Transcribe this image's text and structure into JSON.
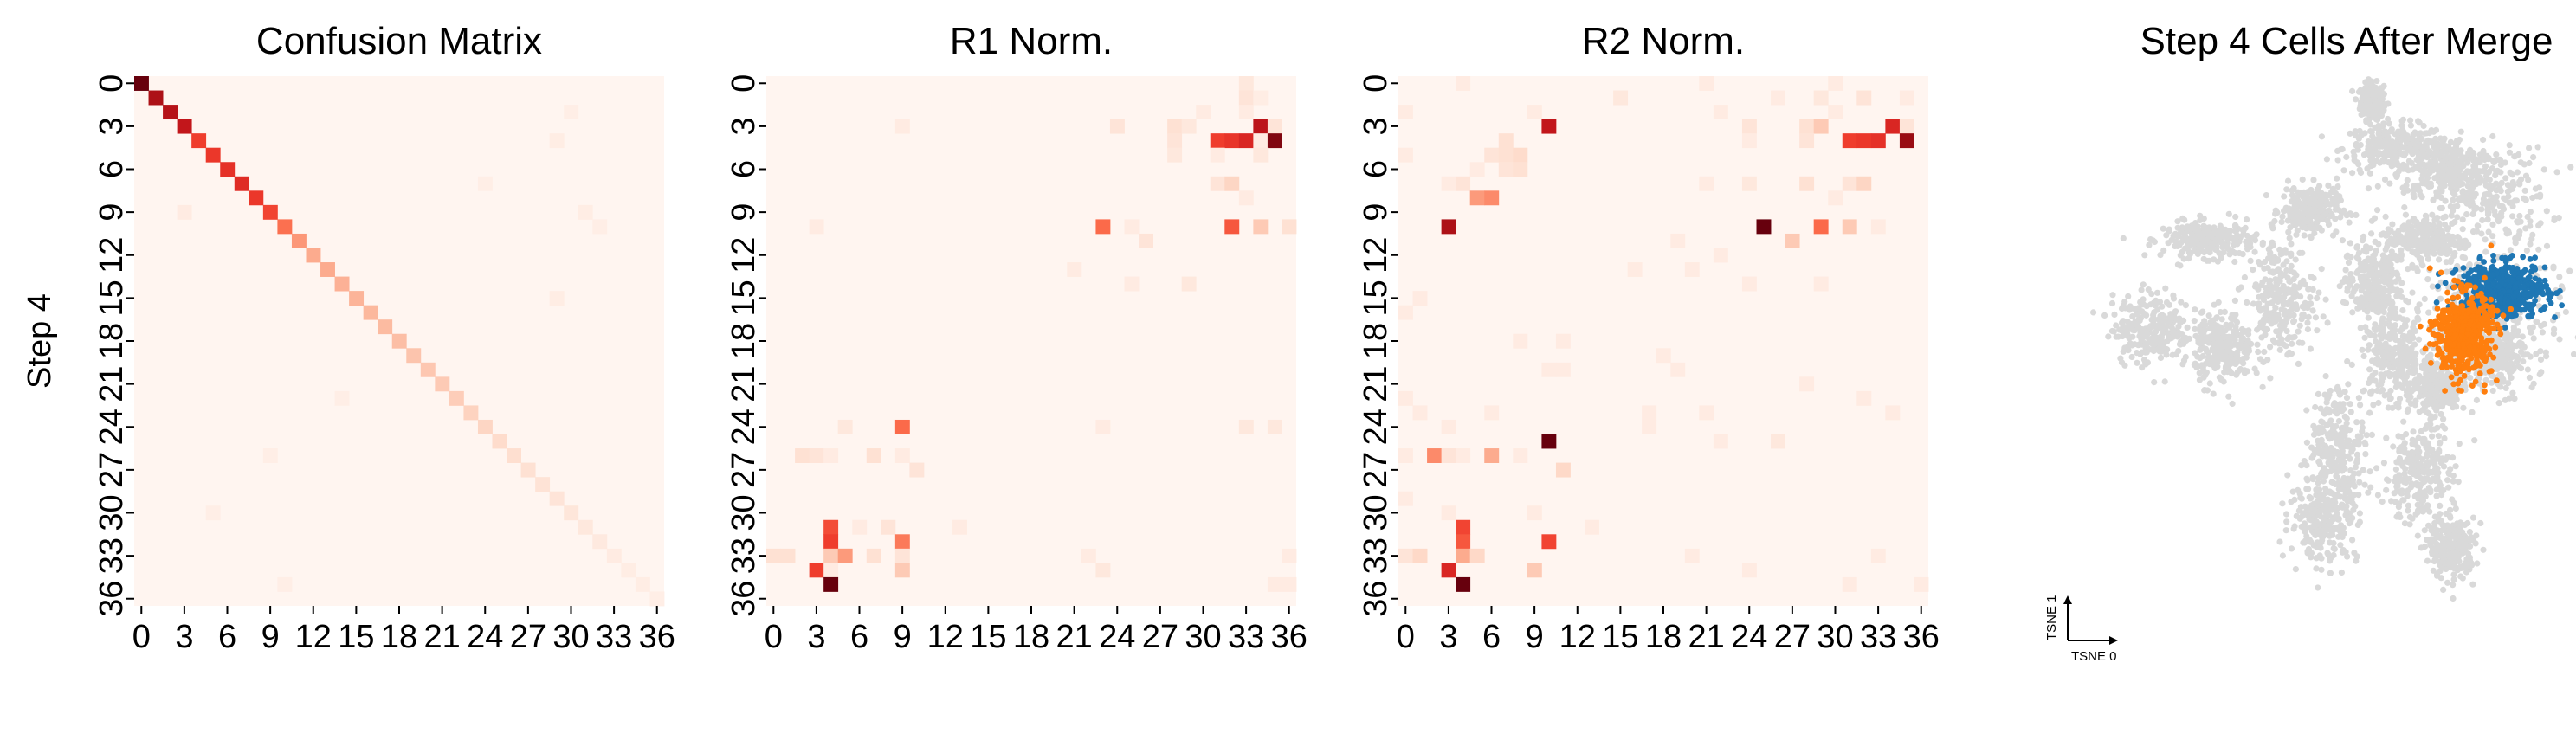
{
  "chart_data": [
    {
      "type": "heatmap",
      "title": "Confusion Matrix",
      "ylabel": "Step 4",
      "xlabel": "",
      "size": 37,
      "tick_labels": [
        "0",
        "3",
        "6",
        "9",
        "12",
        "15",
        "18",
        "21",
        "24",
        "27",
        "30",
        "33",
        "36"
      ],
      "tick_values": [
        0,
        3,
        6,
        9,
        12,
        15,
        18,
        21,
        24,
        27,
        30,
        33,
        36
      ],
      "colormap": "Reds",
      "cells": [
        [
          0,
          0,
          1.0
        ],
        [
          1,
          1,
          0.85
        ],
        [
          2,
          2,
          0.82
        ],
        [
          3,
          3,
          0.78
        ],
        [
          4,
          4,
          0.62
        ],
        [
          5,
          5,
          0.64
        ],
        [
          6,
          6,
          0.66
        ],
        [
          7,
          7,
          0.68
        ],
        [
          8,
          8,
          0.64
        ],
        [
          9,
          9,
          0.6
        ],
        [
          10,
          10,
          0.48
        ],
        [
          11,
          11,
          0.36
        ],
        [
          12,
          12,
          0.3
        ],
        [
          13,
          13,
          0.3
        ],
        [
          14,
          14,
          0.28
        ],
        [
          15,
          15,
          0.27
        ],
        [
          16,
          16,
          0.26
        ],
        [
          17,
          17,
          0.25
        ],
        [
          18,
          18,
          0.24
        ],
        [
          19,
          19,
          0.22
        ],
        [
          20,
          20,
          0.21
        ],
        [
          21,
          21,
          0.2
        ],
        [
          22,
          22,
          0.19
        ],
        [
          23,
          23,
          0.17
        ],
        [
          24,
          24,
          0.16
        ],
        [
          25,
          25,
          0.14
        ],
        [
          26,
          26,
          0.13
        ],
        [
          27,
          27,
          0.12
        ],
        [
          28,
          28,
          0.11
        ],
        [
          29,
          29,
          0.1
        ],
        [
          30,
          30,
          0.09
        ],
        [
          31,
          31,
          0.08
        ],
        [
          32,
          32,
          0.07
        ],
        [
          33,
          33,
          0.06
        ],
        [
          34,
          34,
          0.05
        ],
        [
          35,
          35,
          0.05
        ],
        [
          36,
          36,
          0.04
        ],
        [
          3,
          9,
          0.06
        ],
        [
          29,
          4,
          0.05
        ],
        [
          29,
          15,
          0.05
        ],
        [
          31,
          9,
          0.05
        ],
        [
          32,
          10,
          0.04
        ],
        [
          30,
          2,
          0.04
        ],
        [
          9,
          26,
          0.04
        ],
        [
          24,
          7,
          0.04
        ],
        [
          5,
          30,
          0.04
        ],
        [
          14,
          22,
          0.04
        ],
        [
          10,
          35,
          0.04
        ]
      ]
    },
    {
      "type": "heatmap",
      "title": "R1 Norm.",
      "xlabel": "",
      "ylabel": "",
      "size": 37,
      "tick_labels": [
        "0",
        "3",
        "6",
        "9",
        "12",
        "15",
        "18",
        "21",
        "24",
        "27",
        "30",
        "33",
        "36"
      ],
      "tick_values": [
        0,
        3,
        6,
        9,
        12,
        15,
        18,
        21,
        24,
        27,
        30,
        33,
        36
      ],
      "colormap": "Reds",
      "cells": [
        [
          33,
          0,
          0.08
        ],
        [
          33,
          1,
          0.1
        ],
        [
          34,
          1,
          0.05
        ],
        [
          30,
          2,
          0.06
        ],
        [
          33,
          2,
          0.06
        ],
        [
          9,
          3,
          0.06
        ],
        [
          24,
          3,
          0.1
        ],
        [
          28,
          3,
          0.12
        ],
        [
          29,
          3,
          0.08
        ],
        [
          34,
          3,
          0.8
        ],
        [
          35,
          3,
          0.1
        ],
        [
          28,
          4,
          0.1
        ],
        [
          31,
          4,
          0.62
        ],
        [
          32,
          4,
          0.65
        ],
        [
          33,
          4,
          0.7
        ],
        [
          34,
          4,
          0.06
        ],
        [
          35,
          4,
          0.95
        ],
        [
          28,
          5,
          0.08
        ],
        [
          31,
          5,
          0.06
        ],
        [
          34,
          5,
          0.08
        ],
        [
          31,
          7,
          0.1
        ],
        [
          32,
          7,
          0.16
        ],
        [
          33,
          8,
          0.06
        ],
        [
          3,
          10,
          0.06
        ],
        [
          23,
          10,
          0.5
        ],
        [
          25,
          10,
          0.06
        ],
        [
          32,
          10,
          0.55
        ],
        [
          34,
          10,
          0.2
        ],
        [
          36,
          10,
          0.12
        ],
        [
          26,
          11,
          0.1
        ],
        [
          21,
          13,
          0.06
        ],
        [
          25,
          14,
          0.06
        ],
        [
          29,
          14,
          0.08
        ],
        [
          5,
          24,
          0.08
        ],
        [
          9,
          24,
          0.5
        ],
        [
          23,
          24,
          0.06
        ],
        [
          33,
          24,
          0.08
        ],
        [
          35,
          24,
          0.08
        ],
        [
          2,
          26,
          0.12
        ],
        [
          3,
          26,
          0.1
        ],
        [
          4,
          26,
          0.06
        ],
        [
          7,
          26,
          0.12
        ],
        [
          9,
          26,
          0.06
        ],
        [
          10,
          27,
          0.1
        ],
        [
          4,
          31,
          0.58
        ],
        [
          6,
          31,
          0.06
        ],
        [
          8,
          31,
          0.1
        ],
        [
          13,
          31,
          0.06
        ],
        [
          4,
          32,
          0.62
        ],
        [
          9,
          32,
          0.45
        ],
        [
          0,
          33,
          0.12
        ],
        [
          1,
          33,
          0.12
        ],
        [
          4,
          33,
          0.2
        ],
        [
          5,
          33,
          0.35
        ],
        [
          7,
          33,
          0.12
        ],
        [
          9,
          33,
          0.1
        ],
        [
          22,
          33,
          0.06
        ],
        [
          36,
          33,
          0.06
        ],
        [
          3,
          34,
          0.62
        ],
        [
          4,
          34,
          0.06
        ],
        [
          9,
          34,
          0.2
        ],
        [
          23,
          34,
          0.08
        ],
        [
          4,
          35,
          1.0
        ],
        [
          35,
          35,
          0.06
        ],
        [
          36,
          35,
          0.06
        ]
      ]
    },
    {
      "type": "heatmap",
      "title": "R2 Norm.",
      "xlabel": "",
      "ylabel": "",
      "size": 37,
      "tick_labels": [
        "0",
        "3",
        "6",
        "9",
        "12",
        "15",
        "18",
        "21",
        "24",
        "27",
        "30",
        "33",
        "36"
      ],
      "tick_values": [
        0,
        3,
        6,
        9,
        12,
        15,
        18,
        21,
        24,
        27,
        30,
        33,
        36
      ],
      "colormap": "Reds",
      "cells": [
        [
          4,
          0,
          0.06
        ],
        [
          21,
          0,
          0.06
        ],
        [
          30,
          0,
          0.06
        ],
        [
          15,
          1,
          0.08
        ],
        [
          26,
          1,
          0.06
        ],
        [
          29,
          1,
          0.08
        ],
        [
          32,
          1,
          0.1
        ],
        [
          35,
          1,
          0.06
        ],
        [
          0,
          2,
          0.06
        ],
        [
          9,
          2,
          0.06
        ],
        [
          22,
          2,
          0.06
        ],
        [
          30,
          2,
          0.06
        ],
        [
          10,
          3,
          0.78
        ],
        [
          24,
          3,
          0.1
        ],
        [
          28,
          3,
          0.12
        ],
        [
          29,
          3,
          0.2
        ],
        [
          34,
          3,
          0.7
        ],
        [
          35,
          3,
          0.1
        ],
        [
          7,
          4,
          0.12
        ],
        [
          24,
          4,
          0.06
        ],
        [
          28,
          4,
          0.1
        ],
        [
          31,
          4,
          0.62
        ],
        [
          32,
          4,
          0.64
        ],
        [
          33,
          4,
          0.66
        ],
        [
          35,
          4,
          0.9
        ],
        [
          0,
          5,
          0.06
        ],
        [
          6,
          5,
          0.1
        ],
        [
          7,
          5,
          0.12
        ],
        [
          8,
          5,
          0.14
        ],
        [
          5,
          6,
          0.06
        ],
        [
          7,
          6,
          0.1
        ],
        [
          8,
          6,
          0.12
        ],
        [
          3,
          7,
          0.06
        ],
        [
          4,
          7,
          0.1
        ],
        [
          21,
          7,
          0.06
        ],
        [
          24,
          7,
          0.08
        ],
        [
          28,
          7,
          0.12
        ],
        [
          31,
          7,
          0.1
        ],
        [
          32,
          7,
          0.16
        ],
        [
          5,
          8,
          0.35
        ],
        [
          6,
          8,
          0.4
        ],
        [
          30,
          8,
          0.06
        ],
        [
          3,
          10,
          0.85
        ],
        [
          25,
          10,
          1.0
        ],
        [
          29,
          10,
          0.5
        ],
        [
          31,
          10,
          0.2
        ],
        [
          33,
          10,
          0.06
        ],
        [
          19,
          11,
          0.06
        ],
        [
          27,
          11,
          0.2
        ],
        [
          22,
          12,
          0.06
        ],
        [
          16,
          13,
          0.06
        ],
        [
          20,
          13,
          0.06
        ],
        [
          24,
          14,
          0.06
        ],
        [
          29,
          14,
          0.06
        ],
        [
          1,
          15,
          0.06
        ],
        [
          0,
          16,
          0.06
        ],
        [
          8,
          18,
          0.06
        ],
        [
          11,
          18,
          0.06
        ],
        [
          18,
          19,
          0.06
        ],
        [
          10,
          20,
          0.06
        ],
        [
          11,
          20,
          0.06
        ],
        [
          19,
          20,
          0.06
        ],
        [
          28,
          21,
          0.06
        ],
        [
          0,
          22,
          0.06
        ],
        [
          32,
          22,
          0.06
        ],
        [
          1,
          23,
          0.06
        ],
        [
          6,
          23,
          0.06
        ],
        [
          17,
          23,
          0.06
        ],
        [
          21,
          23,
          0.06
        ],
        [
          34,
          23,
          0.06
        ],
        [
          3,
          24,
          0.06
        ],
        [
          17,
          24,
          0.06
        ],
        [
          10,
          25,
          1.0
        ],
        [
          22,
          25,
          0.06
        ],
        [
          26,
          25,
          0.08
        ],
        [
          0,
          26,
          0.06
        ],
        [
          2,
          26,
          0.4
        ],
        [
          3,
          26,
          0.1
        ],
        [
          4,
          26,
          0.06
        ],
        [
          6,
          26,
          0.3
        ],
        [
          8,
          26,
          0.06
        ],
        [
          11,
          27,
          0.15
        ],
        [
          0,
          29,
          0.06
        ],
        [
          3,
          30,
          0.06
        ],
        [
          9,
          30,
          0.06
        ],
        [
          13,
          31,
          0.06
        ],
        [
          4,
          31,
          0.6
        ],
        [
          10,
          32,
          0.6
        ],
        [
          4,
          32,
          0.55
        ],
        [
          0,
          33,
          0.1
        ],
        [
          1,
          33,
          0.15
        ],
        [
          4,
          33,
          0.3
        ],
        [
          5,
          33,
          0.15
        ],
        [
          20,
          33,
          0.06
        ],
        [
          33,
          33,
          0.06
        ],
        [
          3,
          34,
          0.7
        ],
        [
          9,
          34,
          0.2
        ],
        [
          24,
          34,
          0.06
        ],
        [
          4,
          35,
          1.0
        ],
        [
          31,
          35,
          0.06
        ],
        [
          36,
          35,
          0.06
        ]
      ]
    },
    {
      "type": "scatter",
      "title": "Step 4 Cells After Merge",
      "xlabel": "TSNE 0",
      "ylabel": "TSNE 1",
      "background_color": "#d9d9d9",
      "series": [
        {
          "color": "#1f77b4",
          "center": [
            0.58,
            0.28
          ],
          "spread": [
            0.075,
            0.045
          ]
        },
        {
          "color": "#ff7f0e",
          "center": [
            0.44,
            0.13
          ],
          "spread": [
            0.05,
            0.07
          ]
        }
      ],
      "background_clusters": [
        {
          "center": [
            0.12,
            0.92
          ],
          "spread": [
            0.02,
            0.03
          ]
        },
        {
          "center": [
            0.2,
            0.76
          ],
          "spread": [
            0.09,
            0.04
          ]
        },
        {
          "center": [
            0.38,
            0.7
          ],
          "spread": [
            0.08,
            0.05
          ]
        },
        {
          "center": [
            0.5,
            0.6
          ],
          "spread": [
            0.12,
            0.08
          ]
        },
        {
          "center": [
            -0.45,
            0.45
          ],
          "spread": [
            0.08,
            0.03
          ]
        },
        {
          "center": [
            -0.1,
            0.55
          ],
          "spread": [
            0.05,
            0.04
          ]
        },
        {
          "center": [
            0.3,
            0.45
          ],
          "spread": [
            0.07,
            0.04
          ]
        },
        {
          "center": [
            -0.2,
            0.25
          ],
          "spread": [
            0.06,
            0.1
          ]
        },
        {
          "center": [
            0.12,
            0.3
          ],
          "spread": [
            0.05,
            0.07
          ]
        },
        {
          "center": [
            -0.65,
            0.15
          ],
          "spread": [
            0.07,
            0.06
          ]
        },
        {
          "center": [
            -0.4,
            0.08
          ],
          "spread": [
            0.05,
            0.06
          ]
        },
        {
          "center": [
            0.2,
            0.05
          ],
          "spread": [
            0.06,
            0.08
          ]
        },
        {
          "center": [
            0.35,
            -0.05
          ],
          "spread": [
            0.05,
            0.06
          ]
        },
        {
          "center": [
            0.55,
            0.2
          ],
          "spread": [
            0.12,
            0.12
          ]
        },
        {
          "center": [
            0.0,
            -0.25
          ],
          "spread": [
            0.05,
            0.1
          ]
        },
        {
          "center": [
            0.28,
            -0.35
          ],
          "spread": [
            0.06,
            0.08
          ]
        },
        {
          "center": [
            -0.05,
            -0.5
          ],
          "spread": [
            0.06,
            0.07
          ]
        },
        {
          "center": [
            0.4,
            -0.6
          ],
          "spread": [
            0.04,
            0.05
          ]
        },
        {
          "center": [
            0.55,
            0.05
          ],
          "spread": [
            0.05,
            0.05
          ]
        }
      ]
    }
  ]
}
